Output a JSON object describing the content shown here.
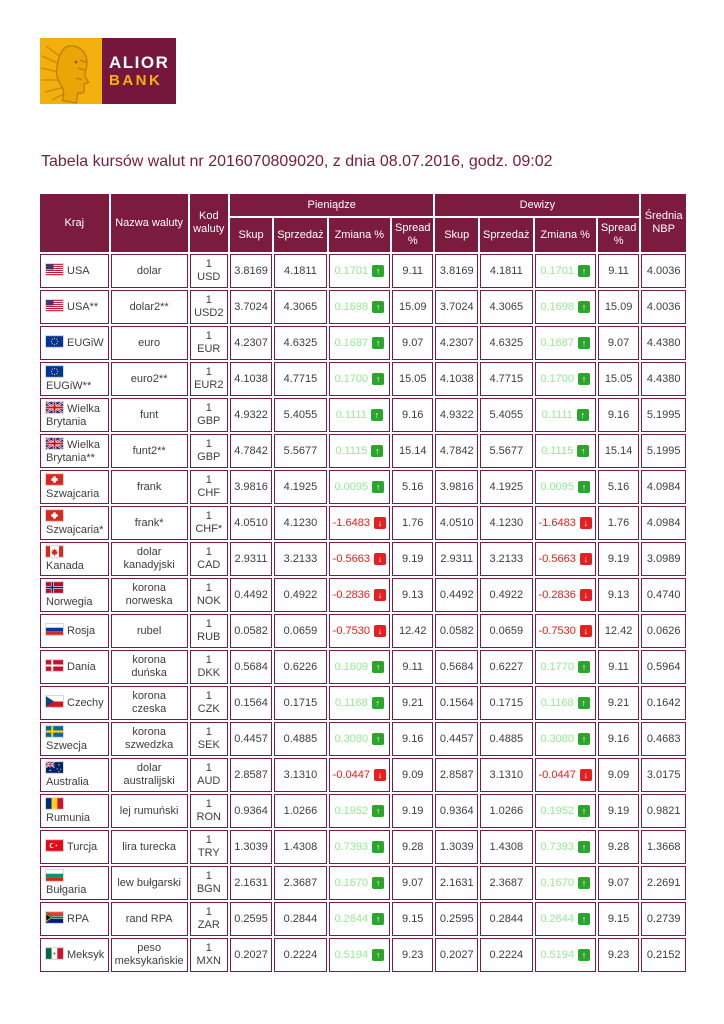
{
  "logo": {
    "brand_top": "ALIOR",
    "brand_bottom": "BANK"
  },
  "title": "Tabela kursów walut nr 2016070809020, z dnia 08.07.2016, godz. 09:02",
  "colors": {
    "brand_maroon": "#7B1B3E",
    "logo_gold": "#F2B20C",
    "positive_text": "#90EE90",
    "positive_icon": "#2BA52B",
    "negative_text": "#FF1414",
    "negative_icon": "#E22222"
  },
  "table": {
    "headers": {
      "kraj": "Kraj",
      "nazwa_waluty": "Nazwa waluty",
      "kod_waluty": "Kod waluty",
      "pieniadze": "Pieniądze",
      "dewizy": "Dewizy",
      "srednia_nbp": "Średnia NBP",
      "skup": "Skup",
      "sprzedaz": "Sprzedaż",
      "zmiana": "Zmiana %",
      "spread": "Spread %"
    },
    "rows": [
      {
        "country": "USA",
        "flag": "us",
        "currency": "dolar",
        "code": "1 USD",
        "cash": {
          "buy": "3.8169",
          "sell": "4.1811",
          "change": "0.1701",
          "dir": "up",
          "spread": "9.11"
        },
        "fx": {
          "buy": "3.8169",
          "sell": "4.1811",
          "change": "0.1701",
          "dir": "up",
          "spread": "9.11"
        },
        "nbp": "4.0036"
      },
      {
        "country": "USA**",
        "flag": "us",
        "currency": "dolar2**",
        "code": "1 USD2",
        "cash": {
          "buy": "3.7024",
          "sell": "4.3065",
          "change": "0.1698",
          "dir": "up",
          "spread": "15.09"
        },
        "fx": {
          "buy": "3.7024",
          "sell": "4.3065",
          "change": "0.1698",
          "dir": "up",
          "spread": "15.09"
        },
        "nbp": "4.0036"
      },
      {
        "country": "EUGiW",
        "flag": "eu",
        "currency": "euro",
        "code": "1 EUR",
        "cash": {
          "buy": "4.2307",
          "sell": "4.6325",
          "change": "0.1687",
          "dir": "up",
          "spread": "9.07"
        },
        "fx": {
          "buy": "4.2307",
          "sell": "4.6325",
          "change": "0.1687",
          "dir": "up",
          "spread": "9.07"
        },
        "nbp": "4.4380"
      },
      {
        "country": "EUGiW**",
        "flag": "eu",
        "currency": "euro2**",
        "code": "1 EUR2",
        "cash": {
          "buy": "4.1038",
          "sell": "4.7715",
          "change": "0.1700",
          "dir": "up",
          "spread": "15.05"
        },
        "fx": {
          "buy": "4.1038",
          "sell": "4.7715",
          "change": "0.1700",
          "dir": "up",
          "spread": "15.05"
        },
        "nbp": "4.4380"
      },
      {
        "country": "Wielka Brytania",
        "flag": "gb",
        "currency": "funt",
        "code": "1 GBP",
        "cash": {
          "buy": "4.9322",
          "sell": "5.4055",
          "change": "0.1111",
          "dir": "up",
          "spread": "9.16"
        },
        "fx": {
          "buy": "4.9322",
          "sell": "5.4055",
          "change": "0.1111",
          "dir": "up",
          "spread": "9.16"
        },
        "nbp": "5.1995"
      },
      {
        "country": "Wielka Brytania**",
        "flag": "gb",
        "currency": "funt2**",
        "code": "1 GBP",
        "cash": {
          "buy": "4.7842",
          "sell": "5.5677",
          "change": "0.1115",
          "dir": "up",
          "spread": "15.14"
        },
        "fx": {
          "buy": "4.7842",
          "sell": "5.5677",
          "change": "0.1115",
          "dir": "up",
          "spread": "15.14"
        },
        "nbp": "5.1995"
      },
      {
        "country": "Szwajcaria",
        "flag": "ch",
        "currency": "frank",
        "code": "1 CHF",
        "cash": {
          "buy": "3.9816",
          "sell": "4.1925",
          "change": "0.0095",
          "dir": "up",
          "spread": "5.16"
        },
        "fx": {
          "buy": "3.9816",
          "sell": "4.1925",
          "change": "0.0095",
          "dir": "up",
          "spread": "5.16"
        },
        "nbp": "4.0984"
      },
      {
        "country": "Szwajcaria*",
        "flag": "ch",
        "currency": "frank*",
        "code": "1 CHF*",
        "cash": {
          "buy": "4.0510",
          "sell": "4.1230",
          "change": "-1.6483",
          "dir": "down",
          "spread": "1.76"
        },
        "fx": {
          "buy": "4.0510",
          "sell": "4.1230",
          "change": "-1.6483",
          "dir": "down",
          "spread": "1.76"
        },
        "nbp": "4.0984"
      },
      {
        "country": "Kanada",
        "flag": "ca",
        "currency": "dolar kanadyjski",
        "code": "1 CAD",
        "cash": {
          "buy": "2.9311",
          "sell": "3.2133",
          "change": "-0.5663",
          "dir": "down",
          "spread": "9.19"
        },
        "fx": {
          "buy": "2.9311",
          "sell": "3.2133",
          "change": "-0.5663",
          "dir": "down",
          "spread": "9.19"
        },
        "nbp": "3.0989"
      },
      {
        "country": "Norwegia",
        "flag": "no",
        "currency": "korona norweska",
        "code": "1 NOK",
        "cash": {
          "buy": "0.4492",
          "sell": "0.4922",
          "change": "-0.2836",
          "dir": "down",
          "spread": "9.13"
        },
        "fx": {
          "buy": "0.4492",
          "sell": "0.4922",
          "change": "-0.2836",
          "dir": "down",
          "spread": "9.13"
        },
        "nbp": "0.4740"
      },
      {
        "country": "Rosja",
        "flag": "ru",
        "currency": "rubel",
        "code": "1 RUB",
        "cash": {
          "buy": "0.0582",
          "sell": "0.0659",
          "change": "-0.7530",
          "dir": "down",
          "spread": "12.42"
        },
        "fx": {
          "buy": "0.0582",
          "sell": "0.0659",
          "change": "-0.7530",
          "dir": "down",
          "spread": "12.42"
        },
        "nbp": "0.0626"
      },
      {
        "country": "Dania",
        "flag": "dk",
        "currency": "korona duńska",
        "code": "1 DKK",
        "cash": {
          "buy": "0.5684",
          "sell": "0.6226",
          "change": "0.1609",
          "dir": "up",
          "spread": "9.11"
        },
        "fx": {
          "buy": "0.5684",
          "sell": "0.6227",
          "change": "0.1770",
          "dir": "up",
          "spread": "9.11"
        },
        "nbp": "0.5964"
      },
      {
        "country": "Czechy",
        "flag": "cz",
        "currency": "korona czeska",
        "code": "1 CZK",
        "cash": {
          "buy": "0.1564",
          "sell": "0.1715",
          "change": "0.1168",
          "dir": "up",
          "spread": "9.21"
        },
        "fx": {
          "buy": "0.1564",
          "sell": "0.1715",
          "change": "0.1168",
          "dir": "up",
          "spread": "9.21"
        },
        "nbp": "0.1642"
      },
      {
        "country": "Szwecja",
        "flag": "se",
        "currency": "korona szwedzka",
        "code": "1 SEK",
        "cash": {
          "buy": "0.4457",
          "sell": "0.4885",
          "change": "0.3080",
          "dir": "up",
          "spread": "9.16"
        },
        "fx": {
          "buy": "0.4457",
          "sell": "0.4885",
          "change": "0.3080",
          "dir": "up",
          "spread": "9.16"
        },
        "nbp": "0.4683"
      },
      {
        "country": "Australia",
        "flag": "au",
        "currency": "dolar australijski",
        "code": "1 AUD",
        "cash": {
          "buy": "2.8587",
          "sell": "3.1310",
          "change": "-0.0447",
          "dir": "down",
          "spread": "9.09"
        },
        "fx": {
          "buy": "2.8587",
          "sell": "3.1310",
          "change": "-0.0447",
          "dir": "down",
          "spread": "9.09"
        },
        "nbp": "3.0175"
      },
      {
        "country": "Rumunia",
        "flag": "ro",
        "currency": "lej rumuński",
        "code": "1 RON",
        "cash": {
          "buy": "0.9364",
          "sell": "1.0266",
          "change": "0.1952",
          "dir": "up",
          "spread": "9.19"
        },
        "fx": {
          "buy": "0.9364",
          "sell": "1.0266",
          "change": "0.1952",
          "dir": "up",
          "spread": "9.19"
        },
        "nbp": "0.9821"
      },
      {
        "country": "Turcja",
        "flag": "tr",
        "currency": "lira turecka",
        "code": "1 TRY",
        "cash": {
          "buy": "1.3039",
          "sell": "1.4308",
          "change": "0.7393",
          "dir": "up",
          "spread": "9.28"
        },
        "fx": {
          "buy": "1.3039",
          "sell": "1.4308",
          "change": "0.7393",
          "dir": "up",
          "spread": "9.28"
        },
        "nbp": "1.3668"
      },
      {
        "country": "Bułgaria",
        "flag": "bg",
        "currency": "lew bułgarski",
        "code": "1 BGN",
        "cash": {
          "buy": "2.1631",
          "sell": "2.3687",
          "change": "0.1670",
          "dir": "up",
          "spread": "9.07"
        },
        "fx": {
          "buy": "2.1631",
          "sell": "2.3687",
          "change": "0.1670",
          "dir": "up",
          "spread": "9.07"
        },
        "nbp": "2.2691"
      },
      {
        "country": "RPA",
        "flag": "za",
        "currency": "rand RPA",
        "code": "1 ZAR",
        "cash": {
          "buy": "0.2595",
          "sell": "0.2844",
          "change": "0.2644",
          "dir": "up",
          "spread": "9.15"
        },
        "fx": {
          "buy": "0.2595",
          "sell": "0.2844",
          "change": "0.2644",
          "dir": "up",
          "spread": "9.15"
        },
        "nbp": "0.2739"
      },
      {
        "country": "Meksyk",
        "flag": "mx",
        "currency": "peso meksykańskie",
        "code": "1 MXN",
        "cash": {
          "buy": "0.2027",
          "sell": "0.2224",
          "change": "0.5194",
          "dir": "up",
          "spread": "9.23"
        },
        "fx": {
          "buy": "0.2027",
          "sell": "0.2224",
          "change": "0.5194",
          "dir": "up",
          "spread": "9.23"
        },
        "nbp": "0.2152"
      }
    ]
  }
}
